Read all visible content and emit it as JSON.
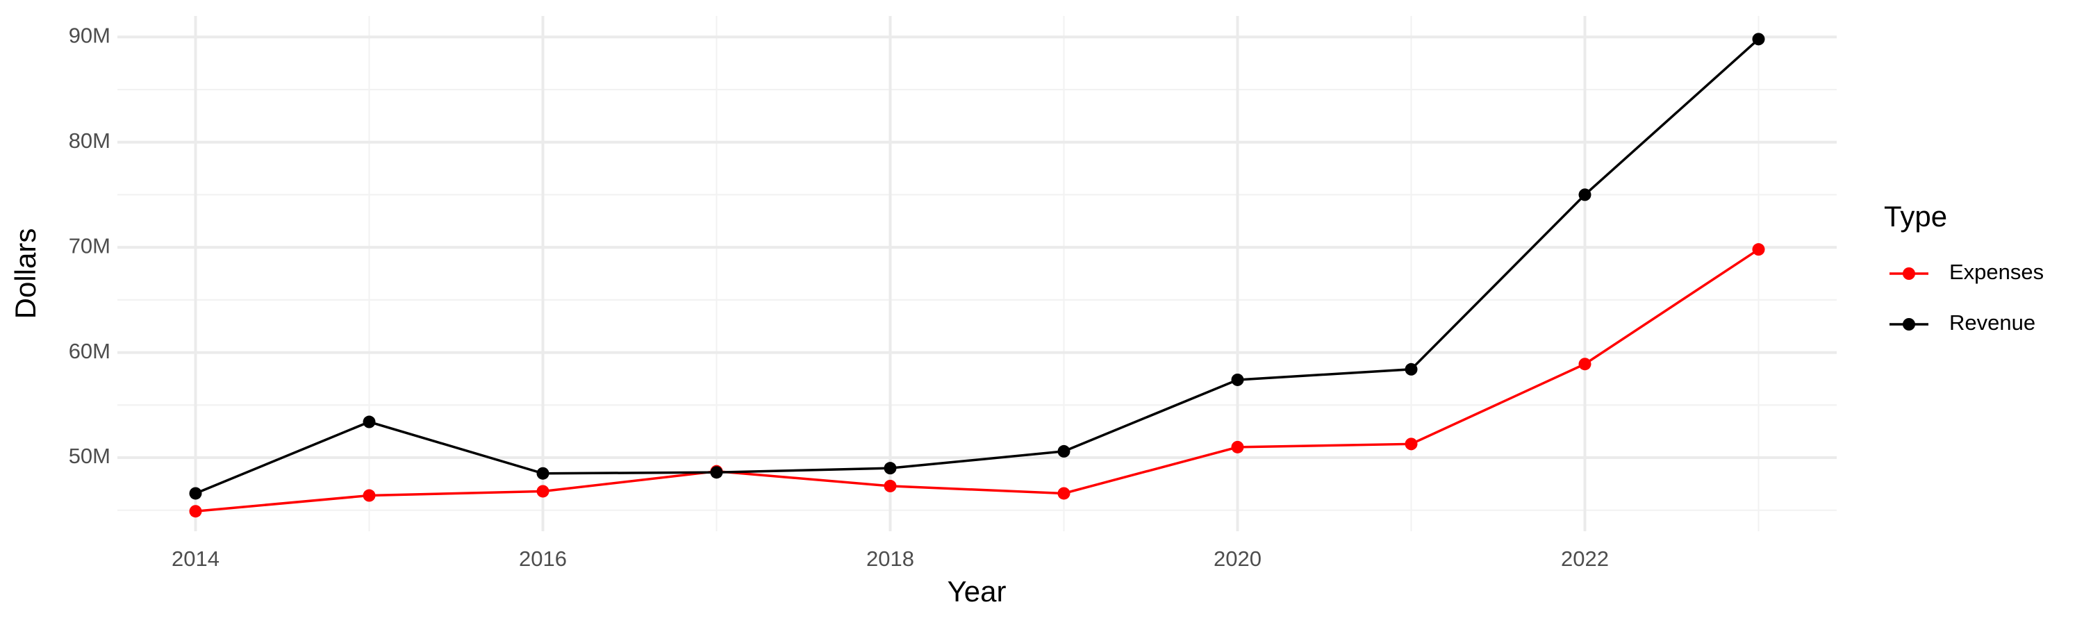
{
  "chart_data": {
    "type": "line",
    "x_label": "Year",
    "y_label": "Dollars",
    "x": [
      2014,
      2015,
      2016,
      2017,
      2018,
      2019,
      2020,
      2021,
      2022,
      2023
    ],
    "series": [
      {
        "name": "Expenses",
        "color": "#ff0000",
        "values": [
          44900000,
          46400000,
          46800000,
          48700000,
          47300000,
          46600000,
          51000000,
          51300000,
          58900000,
          69800000
        ]
      },
      {
        "name": "Revenue",
        "color": "#000000",
        "values": [
          46600000,
          53400000,
          48500000,
          48600000,
          49000000,
          50600000,
          57400000,
          58400000,
          75000000,
          89800000
        ]
      }
    ],
    "xlim": [
      2013.55,
      2023.45
    ],
    "xticks": [
      2014,
      2016,
      2018,
      2020,
      2022
    ],
    "ylim": [
      43000000,
      92000000
    ],
    "yticks": [
      {
        "value": 50000000,
        "label": "50M"
      },
      {
        "value": 60000000,
        "label": "60M"
      },
      {
        "value": 70000000,
        "label": "70M"
      },
      {
        "value": 80000000,
        "label": "80M"
      },
      {
        "value": 90000000,
        "label": "90M"
      }
    ],
    "grid": true,
    "legend_title": "Type",
    "legend_position": "right"
  }
}
